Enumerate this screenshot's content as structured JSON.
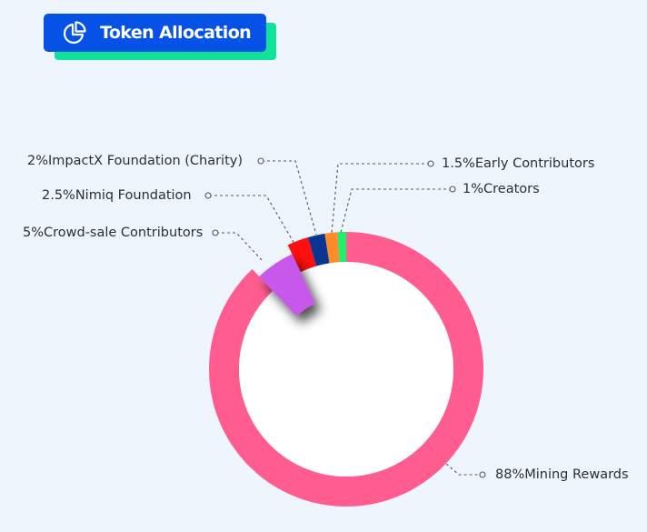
{
  "header": {
    "title": "Token Allocation",
    "icon": "pie-chart-icon",
    "colors": {
      "badge": "#0752e6",
      "badge_shadow": "#0fe39a"
    }
  },
  "chart_data": {
    "type": "pie",
    "title": "Token Allocation",
    "donut": true,
    "start_angle": "12 o'clock, clockwise",
    "categories": [
      "Mining Rewards",
      "Crowd-sale Contributors",
      "Nimiq Foundation",
      "ImpactX Foundation (Charity)",
      "Early Contributors",
      "Creators"
    ],
    "values": [
      88,
      5,
      2.5,
      2,
      1.5,
      1
    ],
    "unit": "%",
    "colors": [
      "#ff5c8f",
      "#c659ec",
      "#ff0f0f",
      "#0a3593",
      "#ff8c2b",
      "#1ef06a"
    ],
    "exploded": [
      "Crowd-sale Contributors"
    ],
    "labels": [
      "88%Mining Rewards",
      "5%Crowd-sale Contributors",
      "2.5%Nimiq Foundation",
      "2%ImpactX Foundation (Charity)",
      "1.5%Early Contributors",
      "1%Creators"
    ]
  }
}
